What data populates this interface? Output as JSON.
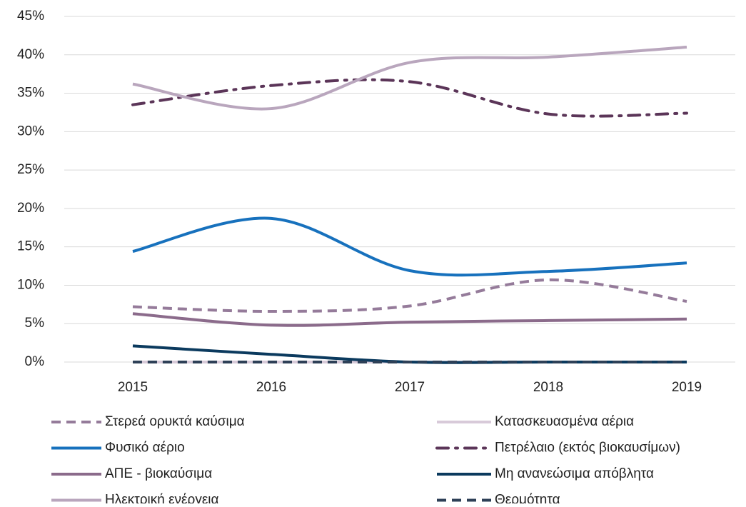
{
  "chart_data": {
    "type": "line",
    "x": [
      "2015",
      "2016",
      "2017",
      "2018",
      "2019"
    ],
    "ylim": [
      0,
      45
    ],
    "yticks": [
      {
        "value": 0,
        "label": "0%"
      },
      {
        "value": 5,
        "label": "5%"
      },
      {
        "value": 10,
        "label": "10%"
      },
      {
        "value": 15,
        "label": "15%"
      },
      {
        "value": 20,
        "label": "20%"
      },
      {
        "value": 25,
        "label": "25%"
      },
      {
        "value": 30,
        "label": "30%"
      },
      {
        "value": 35,
        "label": "35%"
      },
      {
        "value": 40,
        "label": "40%"
      },
      {
        "value": 45,
        "label": "45%"
      }
    ],
    "grid": true,
    "smooth": true,
    "legend": "bottom",
    "series": [
      {
        "name": "Στερεά ορυκτά καύσιμα",
        "color": "#957b9a",
        "style": "dash",
        "values": [
          7.2,
          6.6,
          7.3,
          10.7,
          7.9
        ]
      },
      {
        "name": "Κατασκευασμένα αέρια",
        "color": "#d8cad9",
        "style": "solid",
        "values": [
          0,
          0,
          0,
          0,
          0
        ]
      },
      {
        "name": "Φυσικό αέριο",
        "color": "#1771bd",
        "style": "solid",
        "values": [
          14.4,
          18.7,
          11.9,
          11.8,
          12.9
        ]
      },
      {
        "name": "Πετρέλαιο (εκτός βιοκαυσίμων)",
        "color": "#5b3558",
        "style": "dashdot",
        "values": [
          33.5,
          36.0,
          36.5,
          32.3,
          32.4
        ]
      },
      {
        "name": "ΑΠΕ - βιοκαύσιμα",
        "color": "#8b6b8b",
        "style": "solid",
        "values": [
          6.3,
          4.8,
          5.2,
          5.4,
          5.6
        ]
      },
      {
        "name": "Μη ανανεώσιμα απόβλητα",
        "color": "#0b3a5e",
        "style": "solid",
        "values": [
          2.1,
          1.0,
          0,
          0,
          0
        ]
      },
      {
        "name": "Ηλεκτρική ενέργεια",
        "color": "#b9a6bd",
        "style": "solid",
        "values": [
          36.2,
          33.0,
          39.0,
          39.7,
          41.0
        ]
      },
      {
        "name": "Θερμότητα",
        "color": "#2e4057",
        "style": "dash",
        "values": [
          0,
          0,
          0,
          0,
          0
        ]
      }
    ]
  }
}
